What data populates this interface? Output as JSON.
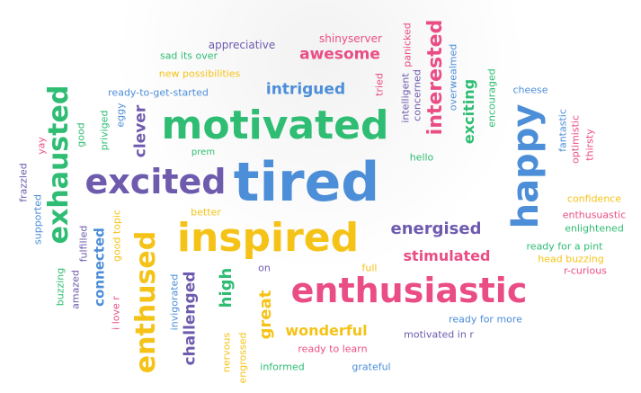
{
  "palette": {
    "purple": "#6e5bae",
    "green": "#2ebd73",
    "pink": "#ea4d85",
    "yellow": "#f5c318",
    "blue": "#4d8ed8"
  },
  "words": [
    {
      "text": "tired",
      "color": "blue"
    },
    {
      "text": "motivated",
      "color": "green"
    },
    {
      "text": "inspired",
      "color": "yellow"
    },
    {
      "text": "enthusiastic",
      "color": "pink"
    },
    {
      "text": "excited",
      "color": "purple"
    },
    {
      "text": "happy",
      "color": "blue"
    },
    {
      "text": "enthused",
      "color": "yellow"
    },
    {
      "text": "exhausted",
      "color": "green"
    },
    {
      "text": "interested",
      "color": "pink"
    },
    {
      "text": "intrigued",
      "color": "blue"
    },
    {
      "text": "awesome",
      "color": "pink"
    },
    {
      "text": "energised",
      "color": "purple"
    },
    {
      "text": "stimulated",
      "color": "pink"
    },
    {
      "text": "wonderful",
      "color": "yellow"
    },
    {
      "text": "challenged",
      "color": "purple"
    },
    {
      "text": "great",
      "color": "yellow"
    },
    {
      "text": "high",
      "color": "green"
    },
    {
      "text": "exciting",
      "color": "green"
    },
    {
      "text": "clever",
      "color": "purple"
    },
    {
      "text": "connected",
      "color": "blue"
    },
    {
      "text": "appreciative",
      "color": "purple"
    },
    {
      "text": "shinyserver",
      "color": "pink"
    },
    {
      "text": "sad its over",
      "color": "green"
    },
    {
      "text": "new possibilities",
      "color": "yellow"
    },
    {
      "text": "ready-to-get-started",
      "color": "blue"
    },
    {
      "text": "panicked",
      "color": "pink"
    },
    {
      "text": "tried",
      "color": "pink"
    },
    {
      "text": "intelligent",
      "color": "purple"
    },
    {
      "text": "concerned",
      "color": "purple"
    },
    {
      "text": "overwealmed",
      "color": "blue"
    },
    {
      "text": "encouraged",
      "color": "green"
    },
    {
      "text": "cheese",
      "color": "blue"
    },
    {
      "text": "fantastic",
      "color": "blue"
    },
    {
      "text": "optimistic",
      "color": "pink"
    },
    {
      "text": "thirsty",
      "color": "pink"
    },
    {
      "text": "hello",
      "color": "green"
    },
    {
      "text": "prem",
      "color": "green"
    },
    {
      "text": "good",
      "color": "green"
    },
    {
      "text": "priviged",
      "color": "green"
    },
    {
      "text": "eggy",
      "color": "blue"
    },
    {
      "text": "yay",
      "color": "pink"
    },
    {
      "text": "frazzled",
      "color": "purple"
    },
    {
      "text": "supported",
      "color": "blue"
    },
    {
      "text": "amazed",
      "color": "purple"
    },
    {
      "text": "fulfilled",
      "color": "purple"
    },
    {
      "text": "good topic",
      "color": "yellow"
    },
    {
      "text": "i love r",
      "color": "pink"
    },
    {
      "text": "buzzing",
      "color": "green"
    },
    {
      "text": "better",
      "color": "yellow"
    },
    {
      "text": "on",
      "color": "purple"
    },
    {
      "text": "full",
      "color": "yellow"
    },
    {
      "text": "invigorated",
      "color": "blue"
    },
    {
      "text": "nervous",
      "color": "yellow"
    },
    {
      "text": "engrossed",
      "color": "yellow"
    },
    {
      "text": "ready to learn",
      "color": "pink"
    },
    {
      "text": "informed",
      "color": "green"
    },
    {
      "text": "grateful",
      "color": "blue"
    },
    {
      "text": "motivated in r",
      "color": "purple"
    },
    {
      "text": "ready for more",
      "color": "blue"
    },
    {
      "text": "confidence",
      "color": "yellow"
    },
    {
      "text": "enthusuastic",
      "color": "pink"
    },
    {
      "text": "enlightened",
      "color": "green"
    },
    {
      "text": "ready for a pint",
      "color": "green"
    },
    {
      "text": "head buzzing",
      "color": "yellow"
    },
    {
      "text": "r-curious",
      "color": "pink"
    }
  ]
}
